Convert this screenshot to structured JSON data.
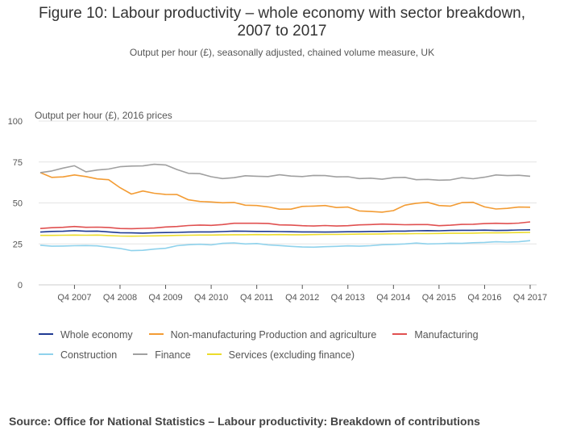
{
  "title_line1": "Figure 10: Labour productivity – whole economy with sector breakdown,",
  "title_line2": "2007 to 2017",
  "subtitle": "Output per hour (£), seasonally adjusted, chained volume measure, UK",
  "source": "Source: Office for National Statistics – Labour productivity: Breakdown of contributions",
  "chart_data": {
    "type": "line",
    "title": "Figure 10: Labour productivity – whole economy with sector breakdown, 2007 to 2017",
    "subtitle": "Output per hour (£), seasonally adjusted, chained volume measure, UK",
    "ylabel": "Output per hour (£), 2016 prices",
    "xlabel": "",
    "ylim": [
      0,
      100
    ],
    "yticks": [
      0,
      25,
      50,
      75,
      100
    ],
    "grid": true,
    "legend_position": "bottom",
    "x_ticks": [
      "Q4 2007",
      "Q4 2008",
      "Q4 2009",
      "Q4 2010",
      "Q4 2011",
      "Q4 2012",
      "Q4 2013",
      "Q4 2014",
      "Q4 2015",
      "Q4 2016",
      "Q4 2017"
    ],
    "x_tick_indices": [
      3,
      7,
      11,
      15,
      19,
      23,
      27,
      31,
      35,
      39,
      43
    ],
    "n_points": 44,
    "series": [
      {
        "name": "Whole economy",
        "color": "#1f3a93",
        "values": [
          32.2,
          32.6,
          32.7,
          33.1,
          32.7,
          32.8,
          32.3,
          31.8,
          31.7,
          31.6,
          31.8,
          31.9,
          32.0,
          32.2,
          32.3,
          32.3,
          32.5,
          32.8,
          32.7,
          32.6,
          32.6,
          32.5,
          32.4,
          32.3,
          32.3,
          32.2,
          32.3,
          32.4,
          32.4,
          32.6,
          32.6,
          32.8,
          32.8,
          33.0,
          33.1,
          33.0,
          33.2,
          33.3,
          33.3,
          33.4,
          33.2,
          33.3,
          33.5,
          33.6
        ]
      },
      {
        "name": "Non-manufacturing Production and agriculture",
        "color": "#f39c34",
        "values": [
          68.5,
          65.6,
          65.9,
          67.1,
          66.1,
          64.7,
          64.2,
          59.3,
          55.4,
          57.3,
          55.9,
          55.2,
          55.1,
          51.9,
          50.9,
          50.6,
          50.1,
          50.3,
          48.6,
          48.4,
          47.6,
          46.2,
          46.2,
          47.9,
          48.1,
          48.4,
          47.2,
          47.5,
          45.1,
          44.8,
          44.4,
          45.3,
          48.6,
          49.8,
          50.4,
          48.4,
          48.1,
          50.2,
          50.4,
          47.6,
          46.3,
          46.7,
          47.5,
          47.4
        ]
      },
      {
        "name": "Manufacturing",
        "color": "#e05050",
        "values": [
          34.4,
          34.9,
          35.1,
          35.6,
          35.1,
          35.2,
          35.0,
          34.4,
          34.3,
          34.5,
          34.7,
          35.3,
          35.6,
          36.2,
          36.5,
          36.3,
          36.8,
          37.6,
          37.6,
          37.6,
          37.5,
          36.6,
          36.5,
          36.1,
          35.9,
          36.2,
          35.9,
          36.1,
          36.6,
          36.8,
          37.1,
          36.9,
          36.7,
          36.8,
          36.8,
          36.1,
          36.4,
          36.9,
          37.0,
          37.4,
          37.6,
          37.4,
          37.7,
          38.4
        ]
      },
      {
        "name": "Construction",
        "color": "#8fd2ec",
        "values": [
          24.2,
          23.6,
          23.7,
          23.9,
          24.0,
          23.8,
          23.0,
          22.2,
          20.9,
          21.1,
          21.8,
          22.3,
          23.9,
          24.5,
          24.8,
          24.4,
          25.3,
          25.6,
          25.0,
          25.2,
          24.4,
          24.0,
          23.5,
          23.1,
          23.0,
          23.3,
          23.5,
          23.8,
          23.6,
          23.9,
          24.5,
          24.7,
          25.0,
          25.5,
          25.0,
          25.1,
          25.4,
          25.3,
          25.7,
          25.9,
          26.3,
          26.1,
          26.3,
          27.0
        ]
      },
      {
        "name": "Finance",
        "color": "#a0a0a0",
        "values": [
          68.5,
          69.5,
          71.3,
          72.7,
          69.0,
          70.1,
          70.7,
          72.1,
          72.5,
          72.6,
          73.6,
          73.2,
          70.4,
          68.1,
          67.9,
          66.0,
          64.9,
          65.4,
          66.6,
          66.3,
          66.1,
          67.2,
          66.4,
          66.1,
          66.8,
          66.7,
          65.9,
          66.0,
          64.9,
          65.1,
          64.5,
          65.4,
          65.6,
          64.2,
          64.4,
          63.9,
          64.1,
          65.4,
          64.8,
          65.7,
          67.1,
          66.7,
          66.9,
          66.3
        ]
      },
      {
        "name": "Services (excluding finance)",
        "color": "#ecdc2b",
        "values": [
          30.2,
          30.2,
          30.3,
          30.4,
          30.3,
          30.4,
          30.1,
          29.8,
          29.7,
          29.8,
          29.9,
          30.0,
          30.2,
          30.3,
          30.4,
          30.4,
          30.5,
          30.6,
          30.6,
          30.7,
          30.6,
          30.7,
          30.6,
          30.6,
          30.7,
          30.8,
          30.8,
          30.9,
          31.0,
          31.0,
          31.1,
          31.2,
          31.2,
          31.3,
          31.3,
          31.4,
          31.5,
          31.5,
          31.6,
          31.7,
          31.7,
          31.8,
          31.9,
          32.0
        ]
      }
    ]
  }
}
